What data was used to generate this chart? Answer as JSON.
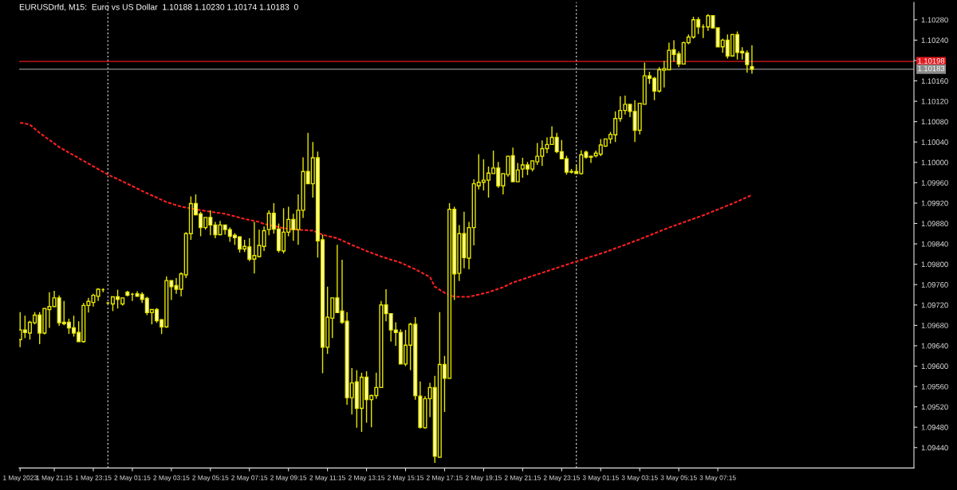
{
  "chart_data": {
    "type": "candlestick",
    "title": "EURUSDrfd, M15:  Euro vs US Dollar  1.10188 1.10230 1.10174 1.10183  0",
    "xlim": [
      "2023-05-01T19:27",
      "2023-05-03T17:18"
    ],
    "xticks": [
      {
        "value": "2023-05-01T19:30",
        "label": "1 May 2023"
      },
      {
        "value": "2023-05-01T21:15",
        "label": "1 May 21:15"
      },
      {
        "value": "2023-05-01T23:15",
        "label": "1 May 23:15"
      },
      {
        "value": "2023-05-02T01:15",
        "label": "2 May 01:15"
      },
      {
        "value": "2023-05-02T03:15",
        "label": "2 May 03:15"
      },
      {
        "value": "2023-05-02T05:15",
        "label": "2 May 05:15"
      },
      {
        "value": "2023-05-02T07:15",
        "label": "2 May 07:15"
      },
      {
        "value": "2023-05-02T09:15",
        "label": "2 May 09:15"
      },
      {
        "value": "2023-05-02T11:15",
        "label": "2 May 11:15"
      },
      {
        "value": "2023-05-02T13:15",
        "label": "2 May 13:15"
      },
      {
        "value": "2023-05-02T15:15",
        "label": "2 May 15:15"
      },
      {
        "value": "2023-05-02T17:15",
        "label": "2 May 17:15"
      },
      {
        "value": "2023-05-02T19:15",
        "label": "2 May 19:15"
      },
      {
        "value": "2023-05-02T21:15",
        "label": "2 May 21:15"
      },
      {
        "value": "2023-05-02T23:15",
        "label": "2 May 23:15"
      },
      {
        "value": "2023-05-03T01:15",
        "label": "3 May 01:15"
      },
      {
        "value": "2023-05-03T03:15",
        "label": "3 May 03:15"
      },
      {
        "value": "2023-05-03T05:15",
        "label": "3 May 05:15"
      },
      {
        "value": "2023-05-03T07:15",
        "label": "3 May 07:15"
      }
    ],
    "ylim": [
      1.094,
      1.10314
    ],
    "yticks": [
      {
        "value": 1.0944,
        "label": "1.09440"
      },
      {
        "value": 1.0948,
        "label": "1.09480"
      },
      {
        "value": 1.0952,
        "label": "1.09520"
      },
      {
        "value": 1.0956,
        "label": "1.09560"
      },
      {
        "value": 1.096,
        "label": "1.09600"
      },
      {
        "value": 1.0964,
        "label": "1.09640"
      },
      {
        "value": 1.0968,
        "label": "1.09680"
      },
      {
        "value": 1.0972,
        "label": "1.09720"
      },
      {
        "value": 1.0976,
        "label": "1.09760"
      },
      {
        "value": 1.098,
        "label": "1.09800"
      },
      {
        "value": 1.0984,
        "label": "1.09840"
      },
      {
        "value": 1.0988,
        "label": "1.09880"
      },
      {
        "value": 1.0992,
        "label": "1.09920"
      },
      {
        "value": 1.0996,
        "label": "1.09960"
      },
      {
        "value": 1.1,
        "label": "1.10000"
      },
      {
        "value": 1.1004,
        "label": "1.10040"
      },
      {
        "value": 1.1008,
        "label": "1.10080"
      },
      {
        "value": 1.1012,
        "label": "1.10120"
      },
      {
        "value": 1.1016,
        "label": "1.10160"
      },
      {
        "value": 1.102,
        "label": null
      },
      {
        "value": 1.1024,
        "label": "1.10240"
      },
      {
        "value": 1.1028,
        "label": "1.10280"
      }
    ],
    "grid": false,
    "legend": false,
    "ref_lines": [
      {
        "axis": "x",
        "value": "2023-05-02T00:00",
        "label": null,
        "color": "#c0c0c0",
        "line_style": "dotted"
      },
      {
        "axis": "x",
        "value": "2023-05-03T00:00",
        "label": null,
        "color": "#c0c0c0",
        "line_style": "dotted"
      },
      {
        "axis": "y",
        "value": 1.10198,
        "label": "1.10198",
        "color": "#e0191e",
        "line_style": "solid"
      },
      {
        "axis": "y",
        "value": 1.10183,
        "label": "1.10183",
        "color": "#8c8c8c",
        "line_style": "solid"
      }
    ],
    "series": [
      {
        "color": "#e6e600",
        "x": [
          "2023-05-01T19:30",
          "2023-05-01T19:45",
          "2023-05-01T20:00",
          "2023-05-01T20:15",
          "2023-05-01T20:30",
          "2023-05-01T20:45",
          "2023-05-01T21:00",
          "2023-05-01T21:15",
          "2023-05-01T21:30",
          "2023-05-01T21:45",
          "2023-05-01T22:00",
          "2023-05-01T22:15",
          "2023-05-01T22:30",
          "2023-05-01T22:45",
          "2023-05-01T23:00",
          "2023-05-01T23:15",
          "2023-05-01T23:30",
          "2023-05-01T23:45",
          "2023-05-02T00:00",
          "2023-05-02T00:15",
          "2023-05-02T00:30",
          "2023-05-02T00:45",
          "2023-05-02T01:00",
          "2023-05-02T01:15",
          "2023-05-02T01:30",
          "2023-05-02T01:45",
          "2023-05-02T02:00",
          "2023-05-02T02:15",
          "2023-05-02T02:30",
          "2023-05-02T02:45",
          "2023-05-02T03:00",
          "2023-05-02T03:15",
          "2023-05-02T03:30",
          "2023-05-02T03:45",
          "2023-05-02T04:00",
          "2023-05-02T04:15",
          "2023-05-02T04:30",
          "2023-05-02T04:45",
          "2023-05-02T05:00",
          "2023-05-02T05:15",
          "2023-05-02T05:30",
          "2023-05-02T05:45",
          "2023-05-02T06:00",
          "2023-05-02T06:15",
          "2023-05-02T06:30",
          "2023-05-02T06:45",
          "2023-05-02T07:00",
          "2023-05-02T07:15",
          "2023-05-02T07:30",
          "2023-05-02T07:45",
          "2023-05-02T08:00",
          "2023-05-02T08:15",
          "2023-05-02T08:30",
          "2023-05-02T08:45",
          "2023-05-02T09:00",
          "2023-05-02T09:15",
          "2023-05-02T09:30",
          "2023-05-02T09:45",
          "2023-05-02T10:00",
          "2023-05-02T10:15",
          "2023-05-02T10:30",
          "2023-05-02T10:45",
          "2023-05-02T11:00",
          "2023-05-02T11:15",
          "2023-05-02T11:30",
          "2023-05-02T11:45",
          "2023-05-02T12:00",
          "2023-05-02T12:15",
          "2023-05-02T12:30",
          "2023-05-02T12:45",
          "2023-05-02T13:00",
          "2023-05-02T13:15",
          "2023-05-02T13:30",
          "2023-05-02T13:45",
          "2023-05-02T14:00",
          "2023-05-02T14:15",
          "2023-05-02T14:30",
          "2023-05-02T14:45",
          "2023-05-02T15:00",
          "2023-05-02T15:15",
          "2023-05-02T15:30",
          "2023-05-02T15:45",
          "2023-05-02T16:00",
          "2023-05-02T16:15",
          "2023-05-02T16:30",
          "2023-05-02T16:45",
          "2023-05-02T17:00",
          "2023-05-02T17:15",
          "2023-05-02T17:30",
          "2023-05-02T17:45",
          "2023-05-02T18:00",
          "2023-05-02T18:15",
          "2023-05-02T18:30",
          "2023-05-02T18:45",
          "2023-05-02T19:00",
          "2023-05-02T19:15",
          "2023-05-02T19:30",
          "2023-05-02T19:45",
          "2023-05-02T20:00",
          "2023-05-02T20:15",
          "2023-05-02T20:30",
          "2023-05-02T20:45",
          "2023-05-02T21:00",
          "2023-05-02T21:15",
          "2023-05-02T21:30",
          "2023-05-02T21:45",
          "2023-05-02T22:00",
          "2023-05-02T22:15",
          "2023-05-02T22:30",
          "2023-05-02T22:45",
          "2023-05-02T23:00",
          "2023-05-02T23:15",
          "2023-05-02T23:30",
          "2023-05-02T23:45",
          "2023-05-03T00:00",
          "2023-05-03T00:15",
          "2023-05-03T00:30",
          "2023-05-03T00:45",
          "2023-05-03T01:00",
          "2023-05-03T01:15",
          "2023-05-03T01:30",
          "2023-05-03T01:45",
          "2023-05-03T02:00",
          "2023-05-03T02:15",
          "2023-05-03T02:30",
          "2023-05-03T02:45",
          "2023-05-03T03:00",
          "2023-05-03T03:15",
          "2023-05-03T03:30",
          "2023-05-03T03:45",
          "2023-05-03T04:00",
          "2023-05-03T04:15",
          "2023-05-03T04:30",
          "2023-05-03T04:45",
          "2023-05-03T05:00",
          "2023-05-03T05:15",
          "2023-05-03T05:30",
          "2023-05-03T05:45",
          "2023-05-03T06:00",
          "2023-05-03T06:15",
          "2023-05-03T06:30",
          "2023-05-03T06:45",
          "2023-05-03T07:00",
          "2023-05-03T07:15",
          "2023-05-03T07:30",
          "2023-05-03T07:45",
          "2023-05-03T08:00",
          "2023-05-03T08:15",
          "2023-05-03T08:30",
          "2023-05-03T08:45",
          "2023-05-03T09:00"
        ],
        "ohlc": [
          [
            1.09652,
            1.09706,
            1.09637,
            1.09671
          ],
          [
            1.09671,
            1.09699,
            1.09655,
            1.09666
          ],
          [
            1.09665,
            1.09689,
            1.09652,
            1.09686
          ],
          [
            1.09685,
            1.09706,
            1.09682,
            1.097
          ],
          [
            1.097,
            1.09706,
            1.09643,
            1.09665
          ],
          [
            1.09665,
            1.09713,
            1.09662,
            1.09713
          ],
          [
            1.09711,
            1.09745,
            1.09675,
            1.09717
          ],
          [
            1.09717,
            1.09748,
            1.09716,
            1.09734
          ],
          [
            1.09734,
            1.09739,
            1.09679,
            1.09685
          ],
          [
            1.09686,
            1.09728,
            1.0968,
            1.09683
          ],
          [
            1.09686,
            1.09693,
            1.09663,
            1.09675
          ],
          [
            1.09675,
            1.09699,
            1.09658,
            1.09665
          ],
          [
            1.09666,
            1.09688,
            1.09648,
            1.09648
          ],
          [
            1.09648,
            1.09724,
            1.09646,
            1.09719
          ],
          [
            1.09719,
            1.09734,
            1.09705,
            1.09727
          ],
          [
            1.09725,
            1.09742,
            1.09717,
            1.09739
          ],
          [
            1.09737,
            1.09753,
            1.09728,
            1.09751
          ],
          [
            1.0975,
            1.09753,
            1.09745,
            1.0975
          ],
          [
            1.09724,
            1.09725,
            1.09722,
            1.09724
          ],
          [
            1.09722,
            1.09736,
            1.09708,
            1.09736
          ],
          [
            1.09736,
            1.0975,
            1.09713,
            1.09731
          ],
          [
            1.09722,
            1.09734,
            1.09719,
            1.09734
          ],
          [
            1.09745,
            1.09748,
            1.09737,
            1.09739
          ],
          [
            1.09741,
            1.09744,
            1.09728,
            1.09741
          ],
          [
            1.09742,
            1.09747,
            1.09736,
            1.09737
          ],
          [
            1.09741,
            1.09745,
            1.09724,
            1.09731
          ],
          [
            1.09733,
            1.09736,
            1.097,
            1.09705
          ],
          [
            1.09705,
            1.09711,
            1.09682,
            1.09711
          ],
          [
            1.09711,
            1.09714,
            1.09685,
            1.09689
          ],
          [
            1.09691,
            1.09691,
            1.09663,
            1.09677
          ],
          [
            1.09677,
            1.09776,
            1.09675,
            1.09768
          ],
          [
            1.09768,
            1.09768,
            1.0973,
            1.09756
          ],
          [
            1.09758,
            1.09773,
            1.09742,
            1.09751
          ],
          [
            1.09751,
            1.09784,
            1.09737,
            1.09781
          ],
          [
            1.09779,
            1.09863,
            1.09773,
            1.0986
          ],
          [
            1.0986,
            1.09933,
            1.09848,
            1.09919
          ],
          [
            1.09919,
            1.09937,
            1.09896,
            1.09897
          ],
          [
            1.09899,
            1.09903,
            1.09855,
            1.09872
          ],
          [
            1.09872,
            1.09892,
            1.09868,
            1.09892
          ],
          [
            1.09892,
            1.09906,
            1.09857,
            1.09877
          ],
          [
            1.09877,
            1.09883,
            1.09851,
            1.09858
          ],
          [
            1.09858,
            1.09885,
            1.09857,
            1.09877
          ],
          [
            1.09877,
            1.09877,
            1.09858,
            1.09868
          ],
          [
            1.09868,
            1.09872,
            1.09844,
            1.09855
          ],
          [
            1.09857,
            1.09861,
            1.09838,
            1.09852
          ],
          [
            1.09854,
            1.09854,
            1.09823,
            1.0983
          ],
          [
            1.0983,
            1.09848,
            1.09824,
            1.09835
          ],
          [
            1.09834,
            1.09851,
            1.09806,
            1.0981
          ],
          [
            1.0981,
            1.09883,
            1.09782,
            1.09817
          ],
          [
            1.09815,
            1.09868,
            1.09813,
            1.09837
          ],
          [
            1.09835,
            1.09874,
            1.09826,
            1.09866
          ],
          [
            1.09868,
            1.09906,
            1.09857,
            1.099
          ],
          [
            1.099,
            1.0992,
            1.0986,
            1.09869
          ],
          [
            1.09869,
            1.0988,
            1.09823,
            1.09827
          ],
          [
            1.09826,
            1.0991,
            1.09821,
            1.09863
          ],
          [
            1.09863,
            1.09913,
            1.09855,
            1.09888
          ],
          [
            1.09888,
            1.09899,
            1.09846,
            1.09868
          ],
          [
            1.09868,
            1.09937,
            1.09838,
            1.09906
          ],
          [
            1.09906,
            1.1001,
            1.09891,
            1.09982
          ],
          [
            1.09982,
            1.10058,
            1.09958,
            1.09958
          ],
          [
            1.09958,
            1.1004,
            1.09931,
            1.10009
          ],
          [
            1.10009,
            1.10021,
            1.09813,
            1.09846
          ],
          [
            1.09848,
            1.09858,
            1.09586,
            1.09637
          ],
          [
            1.09637,
            1.09756,
            1.09624,
            1.09696
          ],
          [
            1.09694,
            1.09734,
            1.09655,
            1.09734
          ],
          [
            1.09734,
            1.09838,
            1.09705,
            1.09705
          ],
          [
            1.09708,
            1.09809,
            1.09683,
            1.09686
          ],
          [
            1.09688,
            1.09706,
            1.09524,
            1.09538
          ],
          [
            1.09538,
            1.09596,
            1.09505,
            1.09567
          ],
          [
            1.09569,
            1.09592,
            1.09479,
            1.09517
          ],
          [
            1.09517,
            1.09587,
            1.09471,
            1.09578
          ],
          [
            1.09578,
            1.0959,
            1.09489,
            1.09534
          ],
          [
            1.09534,
            1.09544,
            1.0948,
            1.09542
          ],
          [
            1.09542,
            1.09587,
            1.09536,
            1.09558
          ],
          [
            1.09558,
            1.09728,
            1.09558,
            1.0972
          ],
          [
            1.0972,
            1.09751,
            1.09688,
            1.09703
          ],
          [
            1.09703,
            1.09703,
            1.09648,
            1.09671
          ],
          [
            1.09671,
            1.09686,
            1.0964,
            1.09666
          ],
          [
            1.09666,
            1.09672,
            1.09604,
            1.09604
          ],
          [
            1.09604,
            1.09671,
            1.096,
            1.09641
          ],
          [
            1.09641,
            1.09685,
            1.09592,
            1.09682
          ],
          [
            1.09682,
            1.09696,
            1.09534,
            1.09542
          ],
          [
            1.09541,
            1.0957,
            1.09477,
            1.0948
          ],
          [
            1.09479,
            1.09541,
            1.09477,
            1.09536
          ],
          [
            1.09536,
            1.09567,
            1.095,
            1.09558
          ],
          [
            1.09558,
            1.09581,
            1.0941,
            1.09423
          ],
          [
            1.09421,
            1.09706,
            1.0942,
            1.09603
          ],
          [
            1.09603,
            1.0962,
            1.0951,
            1.09576
          ],
          [
            1.09576,
            1.0992,
            1.09576,
            1.09908
          ],
          [
            1.09908,
            1.09913,
            1.0973,
            1.09781
          ],
          [
            1.09782,
            1.09877,
            1.09767,
            1.0986
          ],
          [
            1.0986,
            1.09903,
            1.09792,
            1.09813
          ],
          [
            1.09812,
            1.09883,
            1.0979,
            1.09872
          ],
          [
            1.09872,
            1.09967,
            1.09837,
            1.09958
          ],
          [
            1.09954,
            1.10016,
            1.09947,
            1.09961
          ],
          [
            1.09961,
            1.10006,
            1.09945,
            1.09965
          ],
          [
            1.09965,
            1.09992,
            1.09931,
            1.09979
          ],
          [
            1.09978,
            1.10023,
            1.09978,
            1.09989
          ],
          [
            1.09989,
            1.10001,
            1.0995,
            1.09954
          ],
          [
            1.09954,
            1.09979,
            1.09937,
            1.09978
          ],
          [
            1.09976,
            1.10013,
            1.09972,
            1.10012
          ],
          [
            1.10013,
            1.10029,
            1.09962,
            1.09962
          ],
          [
            1.09962,
            1.09999,
            1.09962,
            1.09985
          ],
          [
            1.09987,
            1.10009,
            1.0997,
            1.09995
          ],
          [
            1.09995,
            1.10001,
            1.09975,
            1.09987
          ],
          [
            1.09987,
            1.10004,
            1.09982,
            1.10003
          ],
          [
            1.10001,
            1.10038,
            1.09995,
            1.10012
          ],
          [
            1.10012,
            1.10043,
            1.09993,
            1.10027
          ],
          [
            1.10027,
            1.10049,
            1.10018,
            1.10035
          ],
          [
            1.10035,
            1.10071,
            1.10034,
            1.10049
          ],
          [
            1.10049,
            1.10058,
            1.10018,
            1.10021
          ],
          [
            1.10021,
            1.10044,
            1.10006,
            1.10007
          ],
          [
            1.10007,
            1.10013,
            1.09976,
            1.09981
          ],
          [
            1.09981,
            1.09987,
            1.09978,
            1.09982
          ],
          [
            1.09982,
            1.09995,
            1.09978,
            1.09978
          ],
          [
            1.09978,
            1.10024,
            1.09976,
            1.10015
          ],
          [
            1.1002,
            1.10023,
            1.10007,
            1.1001
          ],
          [
            1.1001,
            1.10013,
            1.09999,
            1.10012
          ],
          [
            1.10013,
            1.10023,
            1.1001,
            1.10018
          ],
          [
            1.10016,
            1.10046,
            1.10012,
            1.10034
          ],
          [
            1.10032,
            1.10046,
            1.1003,
            1.10046
          ],
          [
            1.10046,
            1.1006,
            1.10037,
            1.10055
          ],
          [
            1.10054,
            1.101,
            1.1004,
            1.10086
          ],
          [
            1.10086,
            1.1013,
            1.1008,
            1.10102
          ],
          [
            1.10102,
            1.10131,
            1.10094,
            1.10114
          ],
          [
            1.10114,
            1.10114,
            1.10089,
            1.101
          ],
          [
            1.101,
            1.10122,
            1.1004,
            1.10063
          ],
          [
            1.10063,
            1.10116,
            1.10055,
            1.10116
          ],
          [
            1.10114,
            1.10196,
            1.10114,
            1.1017
          ],
          [
            1.1017,
            1.10178,
            1.10154,
            1.10165
          ],
          [
            1.10165,
            1.10168,
            1.10122,
            1.1014
          ],
          [
            1.1014,
            1.10187,
            1.10137,
            1.10182
          ],
          [
            1.10181,
            1.10199,
            1.10147,
            1.10184
          ],
          [
            1.10182,
            1.10235,
            1.10182,
            1.1022
          ],
          [
            1.10221,
            1.1024,
            1.10198,
            1.10212
          ],
          [
            1.10213,
            1.10218,
            1.10187,
            1.10193
          ],
          [
            1.10193,
            1.10237,
            1.10193,
            1.10235
          ],
          [
            1.10235,
            1.10251,
            1.10232,
            1.10246
          ],
          [
            1.10246,
            1.10286,
            1.10243,
            1.1028
          ],
          [
            1.1028,
            1.10285,
            1.10252,
            1.10266
          ],
          [
            1.10266,
            1.10271,
            1.10244,
            1.10266
          ],
          [
            1.10266,
            1.10291,
            1.10258,
            1.10288
          ],
          [
            1.10288,
            1.10289,
            1.10263,
            1.10264
          ],
          [
            1.10264,
            1.10264,
            1.10227,
            1.10227
          ],
          [
            1.10227,
            1.10243,
            1.10215,
            1.1024
          ],
          [
            1.1024,
            1.10251,
            1.10204,
            1.10209
          ],
          [
            1.10209,
            1.10252,
            1.10209,
            1.10251
          ],
          [
            1.10251,
            1.10257,
            1.10202,
            1.10216
          ],
          [
            1.10218,
            1.10226,
            1.10202,
            1.10215
          ],
          [
            1.10215,
            1.1022,
            1.10176,
            1.10192
          ],
          [
            1.10188,
            1.1023,
            1.10174,
            1.10183
          ]
        ]
      },
      {
        "type": "line",
        "color": "#ff2020",
        "line_style": "dashed",
        "x": [
          "2023-05-01T19:30",
          "2023-05-01T20:00",
          "2023-05-01T20:30",
          "2023-05-01T21:30",
          "2023-05-01T22:45",
          "2023-05-02T00:00",
          "2023-05-02T01:00",
          "2023-05-02T01:45",
          "2023-05-02T03:00",
          "2023-05-02T03:45",
          "2023-05-02T04:30",
          "2023-05-02T05:15",
          "2023-05-02T06:00",
          "2023-05-02T07:00",
          "2023-05-02T07:45",
          "2023-05-02T08:00",
          "2023-05-02T09:15",
          "2023-05-02T10:30",
          "2023-05-02T11:00",
          "2023-05-02T11:45",
          "2023-05-02T12:30",
          "2023-05-02T13:15",
          "2023-05-02T14:00",
          "2023-05-02T14:30",
          "2023-05-02T15:00",
          "2023-05-02T15:45",
          "2023-05-02T16:30",
          "2023-05-02T16:45",
          "2023-05-02T17:15",
          "2023-05-02T17:45",
          "2023-05-02T18:30",
          "2023-05-02T19:30",
          "2023-05-02T20:15",
          "2023-05-02T20:45",
          "2023-05-02T23:15",
          "2023-05-03T01:30",
          "2023-05-03T03:15",
          "2023-05-03T04:45",
          "2023-05-03T06:30",
          "2023-05-03T08:00",
          "2023-05-03T09:00"
        ],
        "values": [
          1.10078,
          1.10074,
          1.10058,
          1.1003,
          1.10003,
          1.09976,
          1.09958,
          1.09944,
          1.09922,
          1.09913,
          1.09908,
          1.09903,
          1.09899,
          1.09889,
          1.09883,
          1.09879,
          1.09869,
          1.09866,
          1.09858,
          1.09851,
          1.09838,
          1.09826,
          1.09815,
          1.09809,
          1.09803,
          1.0979,
          1.09775,
          1.09756,
          1.09744,
          1.09736,
          1.09736,
          1.09745,
          1.09755,
          1.09764,
          1.09796,
          1.09824,
          1.09849,
          1.09872,
          1.09896,
          1.09919,
          1.09936
        ]
      }
    ]
  }
}
